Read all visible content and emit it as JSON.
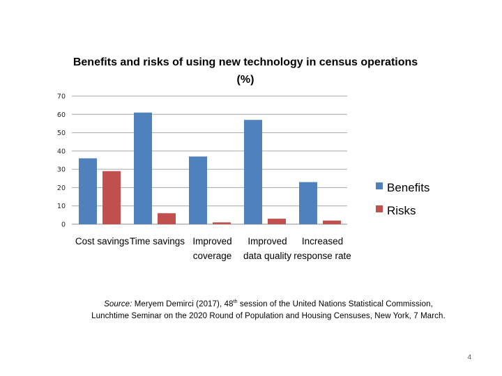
{
  "chart_data": {
    "type": "bar",
    "title_lines": [
      "Benefits and risks of using new technology in census operations",
      "(%)"
    ],
    "categories": [
      [
        "Cost savings"
      ],
      [
        "Time savings"
      ],
      [
        "Improved",
        "coverage"
      ],
      [
        "Improved",
        "data quality"
      ],
      [
        "Increased",
        "response rate"
      ]
    ],
    "series": [
      {
        "name": "Benefits",
        "values": [
          36,
          61,
          37,
          57,
          23
        ],
        "color": "#4f81bd"
      },
      {
        "name": "Risks",
        "values": [
          29,
          6,
          1,
          3,
          2
        ],
        "color": "#c0504d"
      }
    ],
    "yticks": [
      0,
      10,
      20,
      30,
      40,
      50,
      60,
      70
    ],
    "ylim": [
      0,
      70
    ],
    "xlabel": "",
    "ylabel": "",
    "grid": true,
    "legend": "right"
  },
  "source": {
    "label": "Source:",
    "line1_pre": "Meryem Demirci (2017), 48",
    "line1_sup": "th",
    "line1_post": "session of the United Nations Statistical Commission,",
    "line2": "Lunchtime Seminar on the 2020 Round of Population and Housing Censuses, New York, 7 March."
  },
  "page_number": "4"
}
